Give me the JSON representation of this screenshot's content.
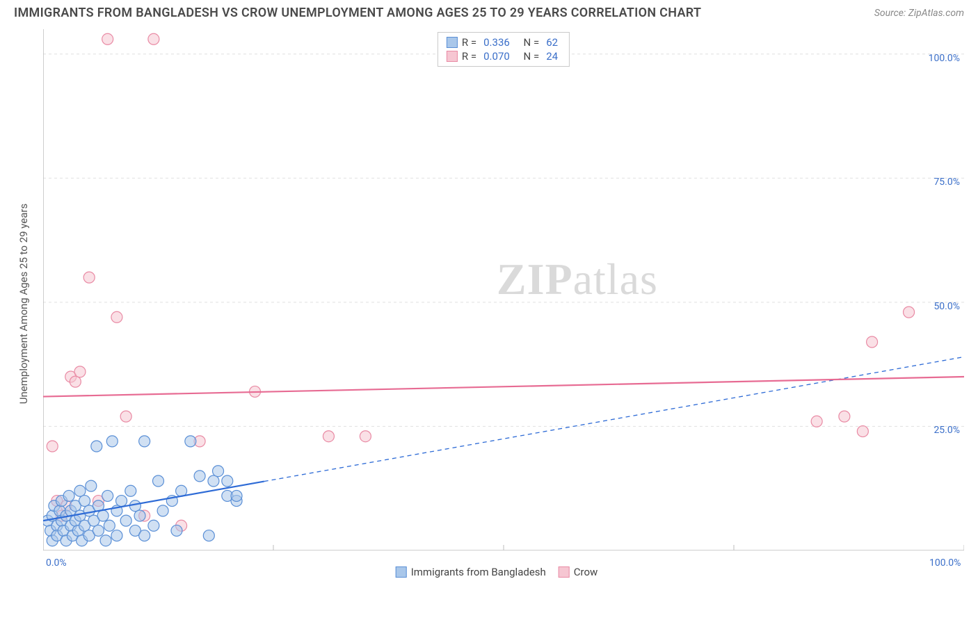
{
  "title": "IMMIGRANTS FROM BANGLADESH VS CROW UNEMPLOYMENT AMONG AGES 25 TO 29 YEARS CORRELATION CHART",
  "source": "Source: ZipAtlas.com",
  "watermark_bold": "ZIP",
  "watermark_rest": "atlas",
  "chart": {
    "type": "scatter",
    "xlim": [
      0,
      100
    ],
    "ylim": [
      0,
      105
    ],
    "x_ticks": [
      0,
      25,
      50,
      75,
      100
    ],
    "x_tick_labels": [
      "0.0%",
      "",
      "",
      "",
      "100.0%"
    ],
    "y_ticks": [
      25,
      50,
      75,
      100
    ],
    "y_tick_labels": [
      "25.0%",
      "50.0%",
      "75.0%",
      "100.0%"
    ],
    "y_label": "Unemployment Among Ages 25 to 29 years",
    "background_color": "#ffffff",
    "grid_color": "#e0e0e0",
    "axis_color": "#bdbdbd",
    "tick_label_color": "#3b6fc9",
    "marker_radius": 8,
    "marker_stroke_width": 1.2,
    "series": [
      {
        "name": "Immigrants from Bangladesh",
        "fill": "#a9c7ea",
        "stroke": "#5a8fd6",
        "fill_opacity": 0.55,
        "R": "0.336",
        "N": "62",
        "trend": {
          "x1": 0,
          "y1": 6,
          "x2": 100,
          "y2": 39,
          "color": "#2e6bd6",
          "solid_until_x": 24,
          "width": 2.2,
          "dash": "6 5"
        },
        "points": [
          [
            0.5,
            6
          ],
          [
            0.8,
            4
          ],
          [
            1,
            7
          ],
          [
            1,
            2
          ],
          [
            1.2,
            9
          ],
          [
            1.5,
            5
          ],
          [
            1.5,
            3
          ],
          [
            1.8,
            8
          ],
          [
            2,
            6
          ],
          [
            2,
            10
          ],
          [
            2.2,
            4
          ],
          [
            2.5,
            7
          ],
          [
            2.5,
            2
          ],
          [
            2.8,
            11
          ],
          [
            3,
            5
          ],
          [
            3,
            8
          ],
          [
            3.2,
            3
          ],
          [
            3.5,
            6
          ],
          [
            3.5,
            9
          ],
          [
            3.8,
            4
          ],
          [
            4,
            12
          ],
          [
            4,
            7
          ],
          [
            4.2,
            2
          ],
          [
            4.5,
            10
          ],
          [
            4.5,
            5
          ],
          [
            5,
            8
          ],
          [
            5,
            3
          ],
          [
            5.2,
            13
          ],
          [
            5.5,
            6
          ],
          [
            5.8,
            21
          ],
          [
            6,
            9
          ],
          [
            6,
            4
          ],
          [
            6.5,
            7
          ],
          [
            6.8,
            2
          ],
          [
            7,
            11
          ],
          [
            7.2,
            5
          ],
          [
            7.5,
            22
          ],
          [
            8,
            8
          ],
          [
            8,
            3
          ],
          [
            8.5,
            10
          ],
          [
            9,
            6
          ],
          [
            9.5,
            12
          ],
          [
            10,
            4
          ],
          [
            10,
            9
          ],
          [
            10.5,
            7
          ],
          [
            11,
            22
          ],
          [
            11,
            3
          ],
          [
            12,
            5
          ],
          [
            12.5,
            14
          ],
          [
            13,
            8
          ],
          [
            14,
            10
          ],
          [
            14.5,
            4
          ],
          [
            15,
            12
          ],
          [
            16,
            22
          ],
          [
            17,
            15
          ],
          [
            18,
            3
          ],
          [
            18.5,
            14
          ],
          [
            19,
            16
          ],
          [
            20,
            11
          ],
          [
            20,
            14
          ],
          [
            21,
            10
          ],
          [
            21,
            11
          ]
        ]
      },
      {
        "name": "Crow",
        "fill": "#f6c6d2",
        "stroke": "#e98aa4",
        "fill_opacity": 0.55,
        "R": "0.070",
        "N": "24",
        "trend": {
          "x1": 0,
          "y1": 31,
          "x2": 100,
          "y2": 35,
          "color": "#e76b93",
          "solid_until_x": 100,
          "width": 2.2,
          "dash": ""
        },
        "points": [
          [
            1,
            21
          ],
          [
            1.5,
            10
          ],
          [
            2,
            7
          ],
          [
            2.5,
            9
          ],
          [
            3,
            35
          ],
          [
            3.5,
            34
          ],
          [
            4,
            36
          ],
          [
            5,
            55
          ],
          [
            6,
            10
          ],
          [
            7,
            103
          ],
          [
            8,
            47
          ],
          [
            9,
            27
          ],
          [
            11,
            7
          ],
          [
            12,
            103
          ],
          [
            15,
            5
          ],
          [
            17,
            22
          ],
          [
            23,
            32
          ],
          [
            31,
            23
          ],
          [
            35,
            23
          ],
          [
            84,
            26
          ],
          [
            87,
            27
          ],
          [
            90,
            42
          ],
          [
            94,
            48
          ],
          [
            89,
            24
          ]
        ]
      }
    ],
    "legend_top": {
      "border_color": "#c9c9c9",
      "value_color": "#3b6fc9"
    },
    "legend_bottom_labels": [
      "Immigrants from Bangladesh",
      "Crow"
    ]
  }
}
